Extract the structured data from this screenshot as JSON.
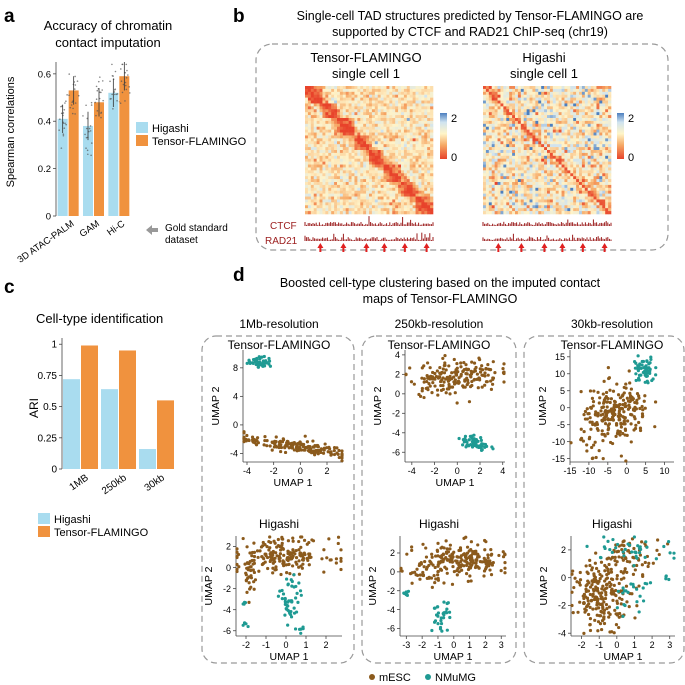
{
  "colors": {
    "higashi": "#a9dcef",
    "tensor": "#f0923e",
    "mesc": "#8b5a1c",
    "nmumg": "#1f9a93",
    "dark_red": "#9b1c1c",
    "dash": "#999999"
  },
  "panel_a": {
    "letter": "a",
    "title_line1": "Accuracy of chromatin",
    "title_line2": "contact imputation",
    "gold_label_line1": "Gold standard",
    "gold_label_line2": "dataset",
    "legend": [
      "Higashi",
      "Tensor-FLAMINGO"
    ],
    "chart_data": {
      "type": "bar",
      "categories": [
        "3D ATAC-PALM",
        "GAM",
        "Hi-C"
      ],
      "series": [
        {
          "name": "Higashi",
          "values": [
            0.41,
            0.38,
            0.52
          ]
        },
        {
          "name": "Tensor-FLAMINGO",
          "values": [
            0.53,
            0.48,
            0.59
          ]
        }
      ],
      "ylabel": "Spearman correlations",
      "ylim": [
        0,
        0.65
      ],
      "yticks": [
        0,
        0.2,
        0.4,
        0.6
      ]
    }
  },
  "panel_b": {
    "letter": "b",
    "title_line1": "Single-cell TAD structures predicted by Tensor-FLAMINGO are",
    "title_line2": "supported by CTCF and RAD21 ChIP-seq (chr19)",
    "map1_title_line1": "Tensor-FLAMINGO",
    "map1_title_line2": "single cell 1",
    "map2_title_line1": "Higashi",
    "map2_title_line2": "single cell 1",
    "scale_max": "2",
    "scale_min": "0",
    "track1": "CTCF",
    "track2": "RAD21"
  },
  "panel_c": {
    "letter": "c",
    "title": "Cell-type identification",
    "legend": [
      "Higashi",
      "Tensor-FLAMINGO"
    ],
    "chart_data": {
      "type": "bar",
      "categories": [
        "1MB",
        "250kb",
        "30kb"
      ],
      "series": [
        {
          "name": "Higashi",
          "values": [
            0.72,
            0.64,
            0.16
          ]
        },
        {
          "name": "Tensor-FLAMINGO",
          "values": [
            0.99,
            0.95,
            0.55
          ]
        }
      ],
      "ylabel": "ARI",
      "ylim": [
        0,
        1.05
      ],
      "yticks": [
        0,
        0.25,
        0.5,
        0.75,
        1
      ]
    }
  },
  "panel_d": {
    "letter": "d",
    "title_line1": "Boosted cell-type clustering based on  the imputed contact",
    "title_line2": "maps of Tensor-FLAMINGO",
    "legend": [
      "mESC",
      "NMuMG"
    ],
    "columns": [
      {
        "title": "1Mb-resolution"
      },
      {
        "title": "250kb-resolution"
      },
      {
        "title": "30kb-resolution"
      }
    ],
    "chart_data": [
      {
        "type": "scatter",
        "title": "Tensor-FLAMINGO",
        "resolution": "1Mb-resolution",
        "xlabel": "UMAP 1",
        "ylabel": "UMAP 2",
        "xlim": [
          -4.3,
          3.2
        ],
        "ylim": [
          -5.2,
          10.5
        ],
        "xticks": [
          -4,
          -2,
          0,
          2
        ],
        "yticks": [
          -4,
          0,
          4,
          8
        ],
        "series": [
          {
            "name": "mESC",
            "clusters": [
              {
                "cx": -0.4,
                "cy": -3.0,
                "sx": 2.1,
                "sy": 0.45,
                "n": 170,
                "tilt": -0.25
              }
            ]
          },
          {
            "name": "NMuMG",
            "clusters": [
              {
                "cx": -3.0,
                "cy": 8.8,
                "sx": 0.45,
                "sy": 0.35,
                "n": 45,
                "tilt": 0
              }
            ]
          }
        ]
      },
      {
        "type": "scatter",
        "title": "Tensor-FLAMINGO",
        "resolution": "250kb-resolution",
        "xlabel": "UMAP 1",
        "ylabel": "UMAP 2",
        "xlim": [
          -4.6,
          4.2
        ],
        "ylim": [
          -7,
          4.5
        ],
        "xticks": [
          -4,
          -2,
          0,
          2,
          4
        ],
        "yticks": [
          -6,
          -4,
          -2,
          0,
          2,
          4
        ],
        "series": [
          {
            "name": "mESC",
            "clusters": [
              {
                "cx": -0.2,
                "cy": 1.8,
                "sx": 2.0,
                "sy": 0.9,
                "n": 190,
                "tilt": 0.1
              }
            ]
          },
          {
            "name": "NMuMG",
            "clusters": [
              {
                "cx": 1.6,
                "cy": -5.1,
                "sx": 0.6,
                "sy": 0.4,
                "n": 55,
                "tilt": -0.2
              }
            ]
          }
        ]
      },
      {
        "type": "scatter",
        "title": "Tensor-FLAMINGO",
        "resolution": "30kb-resolution",
        "xlabel": "",
        "ylabel": "UMAP 2",
        "xlim": [
          -15,
          12.5
        ],
        "ylim": [
          -16,
          17
        ],
        "xticks": [
          -15,
          -10,
          -5,
          0,
          5,
          10
        ],
        "yticks": [
          -15,
          -10,
          -5,
          0,
          5,
          10,
          15
        ],
        "series": [
          {
            "name": "mESC",
            "clusters": [
              {
                "cx": -3.0,
                "cy": -2.5,
                "sx": 4.5,
                "sy": 4.5,
                "n": 240,
                "tilt": 0.3
              }
            ]
          },
          {
            "name": "NMuMG",
            "clusters": [
              {
                "cx": 4.5,
                "cy": 11.0,
                "sx": 1.4,
                "sy": 2.0,
                "n": 60,
                "tilt": 0
              }
            ]
          }
        ]
      },
      {
        "type": "scatter",
        "title": "Higashi",
        "resolution": "1Mb-resolution",
        "xlabel": "UMAP 1",
        "ylabel": "UMAP 2",
        "xlim": [
          -2.5,
          2.8
        ],
        "ylim": [
          -6.5,
          3.0
        ],
        "xticks": [
          -2,
          -1,
          0,
          1,
          2
        ],
        "yticks": [
          -6,
          -4,
          -2,
          0,
          2
        ],
        "series": [
          {
            "name": "mESC",
            "clusters": [
              {
                "cx": -0.2,
                "cy": 1.2,
                "sx": 1.2,
                "sy": 0.8,
                "n": 190,
                "tilt": 0
              },
              {
                "cx": -1.8,
                "cy": -0.9,
                "sx": 0.2,
                "sy": 1.0,
                "n": 25,
                "tilt": 0
              }
            ]
          },
          {
            "name": "NMuMG",
            "clusters": [
              {
                "cx": 0.2,
                "cy": -3.3,
                "sx": 0.25,
                "sy": 1.3,
                "n": 45,
                "tilt": 0
              },
              {
                "cx": -2.1,
                "cy": -3.4,
                "sx": 0.08,
                "sy": 0.1,
                "n": 5,
                "tilt": 0
              },
              {
                "cx": -2.1,
                "cy": -5.3,
                "sx": 0.08,
                "sy": 0.1,
                "n": 5,
                "tilt": 0
              },
              {
                "cx": 0.8,
                "cy": -5.9,
                "sx": 0.2,
                "sy": 0.2,
                "n": 6,
                "tilt": 0
              }
            ]
          }
        ]
      },
      {
        "type": "scatter",
        "title": "Higashi",
        "resolution": "250kb-resolution",
        "xlabel": "UMAP 1",
        "ylabel": "UMAP 2",
        "xlim": [
          -3.4,
          3.3
        ],
        "ylim": [
          -6.8,
          3.8
        ],
        "xticks": [
          -3,
          -2,
          -1,
          0,
          1,
          2,
          3
        ],
        "yticks": [
          -6,
          -4,
          -2,
          0,
          2
        ],
        "series": [
          {
            "name": "mESC",
            "clusters": [
              {
                "cx": 0.5,
                "cy": 1.2,
                "sx": 1.4,
                "sy": 0.9,
                "n": 210,
                "tilt": 0
              },
              {
                "cx": -2.0,
                "cy": -0.6,
                "sx": 0.6,
                "sy": 0.5,
                "n": 25,
                "tilt": 0
              }
            ]
          },
          {
            "name": "NMuMG",
            "clusters": [
              {
                "cx": -0.8,
                "cy": -4.8,
                "sx": 0.3,
                "sy": 0.8,
                "n": 30,
                "tilt": 0
              },
              {
                "cx": -3.0,
                "cy": -2.2,
                "sx": 0.12,
                "sy": 0.12,
                "n": 8,
                "tilt": 0
              }
            ]
          }
        ]
      },
      {
        "type": "scatter",
        "title": "Higashi",
        "resolution": "30kb-resolution",
        "xlabel": "UMAP 1",
        "ylabel": "UMAP 2",
        "xlim": [
          -2.6,
          3.3
        ],
        "ylim": [
          -4.2,
          3.0
        ],
        "xticks": [
          -2,
          -1,
          0,
          1,
          2,
          3
        ],
        "yticks": [
          -4,
          -2,
          0,
          2
        ],
        "series": [
          {
            "name": "mESC",
            "clusters": [
              {
                "cx": -0.8,
                "cy": -1.2,
                "sx": 0.8,
                "sy": 1.2,
                "n": 220,
                "tilt": 0
              },
              {
                "cx": 0.9,
                "cy": 1.6,
                "sx": 0.8,
                "sy": 0.6,
                "n": 60,
                "tilt": 0
              }
            ]
          },
          {
            "name": "NMuMG",
            "clusters": [
              {
                "cx": 0.9,
                "cy": 2.2,
                "sx": 1.2,
                "sy": 0.5,
                "n": 35,
                "tilt": 0
              },
              {
                "cx": 0.9,
                "cy": -0.8,
                "sx": 0.5,
                "sy": 1.2,
                "n": 25,
                "tilt": 0
              },
              {
                "cx": 2.8,
                "cy": 0.0,
                "sx": 0.08,
                "sy": 0.1,
                "n": 4,
                "tilt": 0
              }
            ]
          }
        ]
      }
    ]
  }
}
